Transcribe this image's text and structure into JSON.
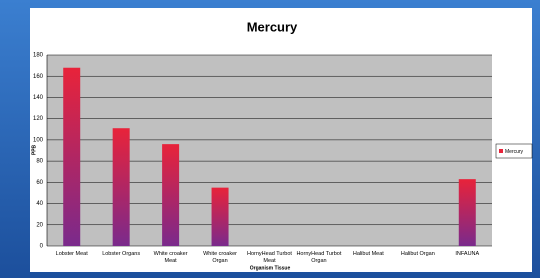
{
  "chart_data": {
    "type": "bar",
    "title": "Mercury",
    "x_label": "Organism Tissue",
    "y_label": "PPB",
    "categories": [
      "Lobster Meat",
      "Lobster Organs",
      "White croaker Meat",
      "White croaker Organ",
      "HornyHead Turbot Meat",
      "HornyHead Turbot Organ",
      "Halibut Meat",
      "Halibut Organ",
      "INFAUNA"
    ],
    "series": [
      {
        "name": "Mercury",
        "color": "#e8233a",
        "values": [
          168,
          111,
          96,
          55,
          0,
          0,
          0,
          0,
          63
        ]
      }
    ],
    "ylim": [
      0,
      180
    ],
    "yticks": [
      0,
      20,
      40,
      60,
      80,
      100,
      120,
      140,
      160,
      180
    ],
    "grid": true,
    "legend": "right"
  }
}
